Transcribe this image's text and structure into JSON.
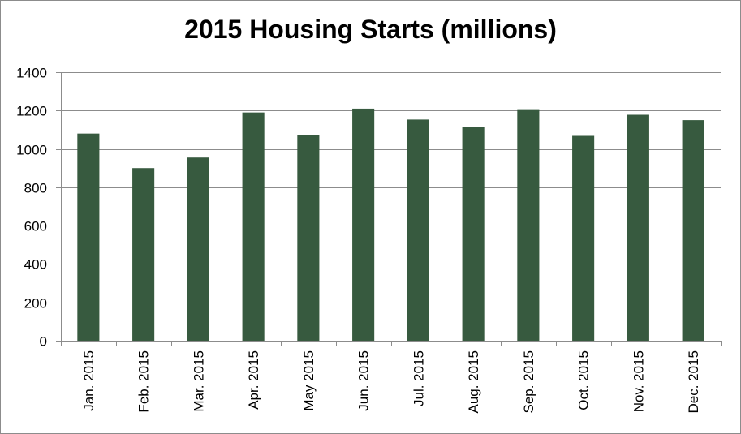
{
  "chart_data": {
    "type": "bar",
    "title": "2015 Housing Starts (millions)",
    "xlabel": "",
    "ylabel": "",
    "categories": [
      "Jan. 2015",
      "Feb. 2015",
      "Mar. 2015",
      "Apr. 2015",
      "May 2015",
      "Jun. 2015",
      "Jul. 2015",
      "Aug. 2015",
      "Sep. 2015",
      "Oct. 2015",
      "Nov. 2015",
      "Dec. 2015"
    ],
    "values": [
      1080,
      900,
      955,
      1190,
      1072,
      1210,
      1153,
      1115,
      1207,
      1068,
      1178,
      1150
    ],
    "ylim": [
      0,
      1400
    ],
    "yticks": [
      0,
      200,
      400,
      600,
      800,
      1000,
      1200,
      1400
    ],
    "grid": true,
    "legend": "none",
    "bar_color": "#375a3f",
    "grid_color": "#8c8c8c"
  }
}
